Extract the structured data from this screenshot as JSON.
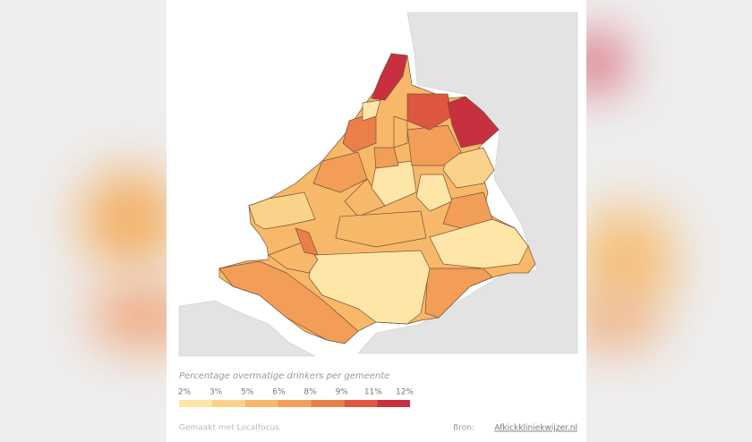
{
  "legend": {
    "title": "Percentage overmatige drinkers per gemeente",
    "labels": [
      "2%",
      "3%",
      "5%",
      "6%",
      "8%",
      "9%",
      "11%",
      "12%"
    ],
    "colors": [
      "#fde6a8",
      "#fbd289",
      "#f7b86a",
      "#f29e58",
      "#eb7f4b",
      "#df5740",
      "#c8303f"
    ]
  },
  "footer": {
    "credit": "Gemaakt met Localfocus",
    "source_label": "Bron:",
    "source_link": "Afkickkliniekwijzer.nl"
  }
}
